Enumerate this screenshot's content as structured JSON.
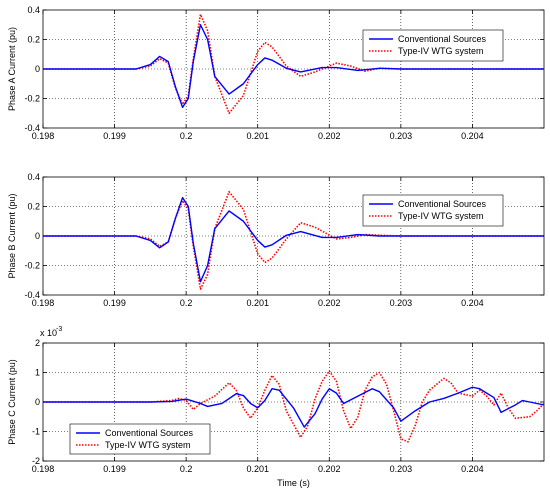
{
  "chart_data": [
    {
      "type": "line",
      "ylabel": "Phase A Current (pu)",
      "xlabel": "",
      "xlim": [
        0.198,
        0.205
      ],
      "ylim": [
        -0.4,
        0.4
      ],
      "grid": true,
      "legend_position": "top-right",
      "x_ticks": [
        "0.198",
        "0.199",
        "0.2",
        "0.201",
        "0.202",
        "0.203",
        "0.204"
      ],
      "y_ticks": [
        "-0.4",
        "-0.2",
        "0",
        "0.2",
        "0.4"
      ],
      "y_exponent": "",
      "series": [
        {
          "name": "Conventional Sources",
          "color": "#0000ff",
          "style": "solid",
          "points": [
            [
              0.198,
              0
            ],
            [
              0.1993,
              0
            ],
            [
              0.1995,
              0.03
            ],
            [
              0.19963,
              0.085
            ],
            [
              0.19975,
              0.05
            ],
            [
              0.19985,
              -0.12
            ],
            [
              0.19995,
              -0.26
            ],
            [
              0.20003,
              -0.2
            ],
            [
              0.2001,
              0.05
            ],
            [
              0.2002,
              0.3
            ],
            [
              0.2003,
              0.2
            ],
            [
              0.2004,
              -0.05
            ],
            [
              0.2006,
              -0.17
            ],
            [
              0.2008,
              -0.1
            ],
            [
              0.201,
              0.03
            ],
            [
              0.2011,
              0.075
            ],
            [
              0.2012,
              0.06
            ],
            [
              0.2014,
              0.005
            ],
            [
              0.2016,
              -0.02
            ],
            [
              0.2019,
              0.01
            ],
            [
              0.2021,
              0.01
            ],
            [
              0.2024,
              -0.01
            ],
            [
              0.2027,
              0.005
            ],
            [
              0.203,
              0
            ],
            [
              0.205,
              0
            ]
          ]
        },
        {
          "name": "Type-IV WTG system",
          "color": "#ff0000",
          "style": "dotted",
          "points": [
            [
              0.198,
              0
            ],
            [
              0.1993,
              0
            ],
            [
              0.1995,
              0.02
            ],
            [
              0.19963,
              0.07
            ],
            [
              0.19975,
              0.04
            ],
            [
              0.19985,
              -0.13
            ],
            [
              0.19995,
              -0.24
            ],
            [
              0.20003,
              -0.18
            ],
            [
              0.2001,
              0.07
            ],
            [
              0.2002,
              0.37
            ],
            [
              0.2003,
              0.26
            ],
            [
              0.2004,
              -0.05
            ],
            [
              0.2006,
              -0.3
            ],
            [
              0.2008,
              -0.18
            ],
            [
              0.201,
              0.12
            ],
            [
              0.2011,
              0.18
            ],
            [
              0.2012,
              0.15
            ],
            [
              0.2014,
              0.02
            ],
            [
              0.2016,
              -0.05
            ],
            [
              0.2018,
              -0.02
            ],
            [
              0.2021,
              0.04
            ],
            [
              0.2023,
              0.02
            ],
            [
              0.2025,
              -0.015
            ],
            [
              0.2027,
              0.005
            ],
            [
              0.203,
              0
            ],
            [
              0.205,
              0
            ]
          ]
        }
      ]
    },
    {
      "type": "line",
      "ylabel": "Phase B Current (pu)",
      "xlabel": "",
      "xlim": [
        0.198,
        0.205
      ],
      "ylim": [
        -0.4,
        0.4
      ],
      "grid": true,
      "legend_position": "top-right",
      "x_ticks": [
        "0.198",
        "0.199",
        "0.2",
        "0.201",
        "0.202",
        "0.203",
        "0.204"
      ],
      "y_ticks": [
        "-0.4",
        "-0.2",
        "0",
        "0.2",
        "0.4"
      ],
      "y_exponent": "",
      "series": [
        {
          "name": "Conventional Sources",
          "color": "#0000ff",
          "style": "solid",
          "points": [
            [
              0.198,
              0
            ],
            [
              0.1993,
              0
            ],
            [
              0.1995,
              -0.03
            ],
            [
              0.19963,
              -0.08
            ],
            [
              0.19975,
              -0.04
            ],
            [
              0.19985,
              0.12
            ],
            [
              0.19995,
              0.26
            ],
            [
              0.20003,
              0.2
            ],
            [
              0.2001,
              -0.05
            ],
            [
              0.2002,
              -0.31
            ],
            [
              0.2003,
              -0.2
            ],
            [
              0.2004,
              0.05
            ],
            [
              0.2006,
              0.17
            ],
            [
              0.2008,
              0.1
            ],
            [
              0.201,
              -0.03
            ],
            [
              0.2011,
              -0.075
            ],
            [
              0.2012,
              -0.06
            ],
            [
              0.2014,
              0.005
            ],
            [
              0.2016,
              0.03
            ],
            [
              0.2019,
              -0.01
            ],
            [
              0.2021,
              -0.01
            ],
            [
              0.2024,
              0.01
            ],
            [
              0.2027,
              0
            ],
            [
              0.205,
              0
            ]
          ]
        },
        {
          "name": "Type-IV WTG system",
          "color": "#ff0000",
          "style": "dotted",
          "points": [
            [
              0.198,
              0
            ],
            [
              0.1993,
              0
            ],
            [
              0.1995,
              -0.02
            ],
            [
              0.19963,
              -0.07
            ],
            [
              0.19975,
              -0.04
            ],
            [
              0.19985,
              0.12
            ],
            [
              0.19995,
              0.24
            ],
            [
              0.20003,
              0.18
            ],
            [
              0.2001,
              -0.07
            ],
            [
              0.2002,
              -0.36
            ],
            [
              0.2003,
              -0.26
            ],
            [
              0.2004,
              0.05
            ],
            [
              0.2006,
              0.3
            ],
            [
              0.2008,
              0.18
            ],
            [
              0.201,
              -0.12
            ],
            [
              0.2011,
              -0.18
            ],
            [
              0.2012,
              -0.15
            ],
            [
              0.2014,
              -0.02
            ],
            [
              0.2016,
              0.09
            ],
            [
              0.2018,
              0.06
            ],
            [
              0.2021,
              -0.02
            ],
            [
              0.2023,
              -0.01
            ],
            [
              0.2025,
              0.01
            ],
            [
              0.2027,
              0.005
            ],
            [
              0.203,
              0
            ],
            [
              0.205,
              0
            ]
          ]
        }
      ]
    },
    {
      "type": "line",
      "ylabel": "Phase C Current (pu)",
      "xlabel": "Time (s)",
      "xlim": [
        0.198,
        0.205
      ],
      "ylim": [
        -2,
        2
      ],
      "grid": true,
      "legend_position": "bottom-left",
      "x_ticks": [
        "0.198",
        "0.199",
        "0.2",
        "0.201",
        "0.202",
        "0.203",
        "0.204"
      ],
      "y_ticks": [
        "-2",
        "-1",
        "0",
        "1",
        "2"
      ],
      "y_exponent": "x 10",
      "y_exponent_power": "-3",
      "series": [
        {
          "name": "Conventional Sources",
          "color": "#0000ff",
          "style": "solid",
          "points": [
            [
              0.198,
              0
            ],
            [
              0.1995,
              0
            ],
            [
              0.1998,
              0.02
            ],
            [
              0.2,
              0.1
            ],
            [
              0.2002,
              -0.05
            ],
            [
              0.2003,
              -0.15
            ],
            [
              0.2005,
              -0.05
            ],
            [
              0.2007,
              0.28
            ],
            [
              0.2008,
              0.22
            ],
            [
              0.2009,
              -0.05
            ],
            [
              0.201,
              -0.2
            ],
            [
              0.2011,
              0.05
            ],
            [
              0.2012,
              0.45
            ],
            [
              0.2013,
              0.4
            ],
            [
              0.2015,
              -0.2
            ],
            [
              0.20165,
              -0.85
            ],
            [
              0.2018,
              -0.4
            ],
            [
              0.2019,
              0.1
            ],
            [
              0.202,
              0.45
            ],
            [
              0.2021,
              0.3
            ],
            [
              0.2022,
              -0.05
            ],
            [
              0.2024,
              0.2
            ],
            [
              0.2026,
              0.45
            ],
            [
              0.2027,
              0.35
            ],
            [
              0.2029,
              -0.2
            ],
            [
              0.203,
              -0.65
            ],
            [
              0.2032,
              -0.3
            ],
            [
              0.2034,
              0
            ],
            [
              0.2036,
              0.12
            ],
            [
              0.2038,
              0.3
            ],
            [
              0.204,
              0.5
            ],
            [
              0.2041,
              0.45
            ],
            [
              0.2043,
              0.15
            ],
            [
              0.2044,
              -0.35
            ],
            [
              0.2046,
              -0.1
            ],
            [
              0.2047,
              0.05
            ],
            [
              0.2048,
              0
            ],
            [
              0.205,
              -0.1
            ]
          ]
        },
        {
          "name": "Type-IV WTG system",
          "color": "#ff0000",
          "style": "dotted",
          "points": [
            [
              0.198,
              0
            ],
            [
              0.1995,
              0
            ],
            [
              0.1998,
              0.05
            ],
            [
              0.1999,
              0.12
            ],
            [
              0.2,
              0.05
            ],
            [
              0.2001,
              -0.25
            ],
            [
              0.2002,
              -0.05
            ],
            [
              0.2004,
              0.2
            ],
            [
              0.2006,
              0.65
            ],
            [
              0.2007,
              0.4
            ],
            [
              0.2008,
              -0.2
            ],
            [
              0.2009,
              -0.55
            ],
            [
              0.201,
              -0.2
            ],
            [
              0.2011,
              0.4
            ],
            [
              0.2012,
              0.9
            ],
            [
              0.2013,
              0.6
            ],
            [
              0.2014,
              -0.3
            ],
            [
              0.2016,
              -1.2
            ],
            [
              0.2017,
              -0.8
            ],
            [
              0.2018,
              0.1
            ],
            [
              0.2019,
              0.7
            ],
            [
              0.202,
              1.05
            ],
            [
              0.2021,
              0.7
            ],
            [
              0.2022,
              -0.3
            ],
            [
              0.2023,
              -0.9
            ],
            [
              0.2024,
              -0.5
            ],
            [
              0.2025,
              0.4
            ],
            [
              0.2026,
              0.85
            ],
            [
              0.2027,
              1.0
            ],
            [
              0.2028,
              0.6
            ],
            [
              0.2029,
              -0.3
            ],
            [
              0.203,
              -1.25
            ],
            [
              0.2031,
              -1.35
            ],
            [
              0.2032,
              -0.8
            ],
            [
              0.2033,
              0
            ],
            [
              0.2034,
              0.4
            ],
            [
              0.2036,
              0.8
            ],
            [
              0.2037,
              0.65
            ],
            [
              0.2038,
              0.3
            ],
            [
              0.204,
              0.2
            ],
            [
              0.2041,
              0.4
            ],
            [
              0.2042,
              0.2
            ],
            [
              0.2043,
              -0.1
            ],
            [
              0.2044,
              0.3
            ],
            [
              0.2045,
              -0.2
            ],
            [
              0.2046,
              -0.55
            ],
            [
              0.2048,
              -0.5
            ],
            [
              0.2049,
              -0.3
            ],
            [
              0.205,
              -0.05
            ]
          ]
        }
      ]
    }
  ]
}
